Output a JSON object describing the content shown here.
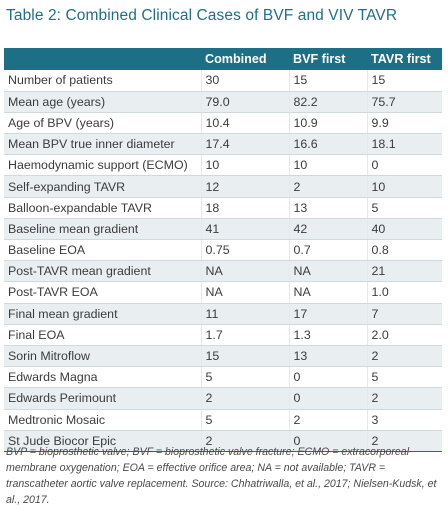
{
  "title": "Table 2: Combined Clinical Cases of BVF and VIV TAVR",
  "table": {
    "headers": [
      "",
      "Combined",
      "BVF first",
      "TAVR first"
    ],
    "rows": [
      [
        "Number of patients",
        "30",
        "15",
        "15"
      ],
      [
        "Mean age (years)",
        "79.0",
        "82.2",
        "75.7"
      ],
      [
        "Age of BPV (years)",
        "10.4",
        "10.9",
        "9.9"
      ],
      [
        "Mean BPV true inner diameter",
        "17.4",
        "16.6",
        "18.1"
      ],
      [
        "Haemodynamic support (ECMO)",
        "10",
        "10",
        "0"
      ],
      [
        "Self-expanding TAVR",
        "12",
        "2",
        "10"
      ],
      [
        "Balloon-expandable TAVR",
        "18",
        "13",
        "5"
      ],
      [
        "Baseline mean gradient",
        "41",
        "42",
        "40"
      ],
      [
        "Baseline EOA",
        "0.75",
        "0.7",
        "0.8"
      ],
      [
        "Post-TAVR mean gradient",
        "NA",
        "NA",
        "21"
      ],
      [
        "Post-TAVR EOA",
        "NA",
        "NA",
        "1.0"
      ],
      [
        "Final mean gradient",
        "11",
        "17",
        "7"
      ],
      [
        "Final EOA",
        "1.7",
        "1.3",
        "2.0"
      ],
      [
        "Sorin Mitroflow",
        "15",
        "13",
        "2"
      ],
      [
        "Edwards Magna",
        "5",
        "0",
        "5"
      ],
      [
        "Edwards Perimount",
        "2",
        "0",
        "2"
      ],
      [
        "Medtronic Mosaic",
        "5",
        "2",
        "3"
      ],
      [
        "St Jude Biocor Epic",
        "2",
        "0",
        "2"
      ]
    ]
  },
  "footnote": "BVP = bioprosthetic valve; BVF = bioprosthetic valve fracture; ECMO = extracorporeal membrane oxygenation; EOA = effective orifice area; NA = not available; TAVR = transcatheter aortic valve replacement. Source: Chhatriwalla, et al., 2017; Nielsen-Kudsk, et al., 2017.",
  "colors": {
    "title": "#1f6f86",
    "header_bg": "#1d6f86",
    "header_text": "#ffffff",
    "stripe": "#e9eef1"
  }
}
